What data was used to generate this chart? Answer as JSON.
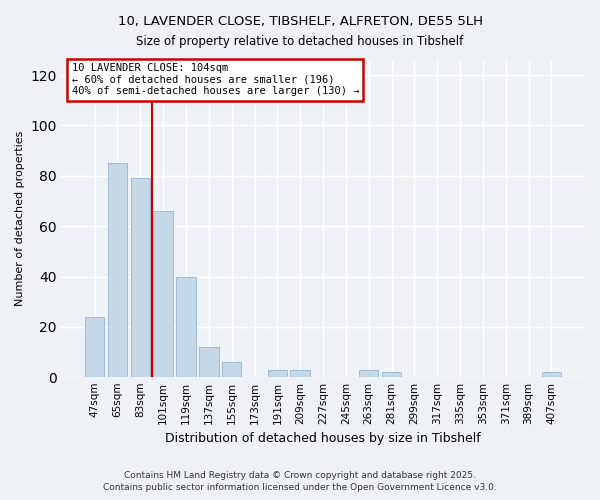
{
  "title_line1": "10, LAVENDER CLOSE, TIBSHELF, ALFRETON, DE55 5LH",
  "title_line2": "Size of property relative to detached houses in Tibshelf",
  "xlabel": "Distribution of detached houses by size in Tibshelf",
  "ylabel": "Number of detached properties",
  "categories": [
    "47sqm",
    "65sqm",
    "83sqm",
    "101sqm",
    "119sqm",
    "137sqm",
    "155sqm",
    "173sqm",
    "191sqm",
    "209sqm",
    "227sqm",
    "245sqm",
    "263sqm",
    "281sqm",
    "299sqm",
    "317sqm",
    "335sqm",
    "353sqm",
    "371sqm",
    "389sqm",
    "407sqm"
  ],
  "values": [
    24,
    85,
    79,
    66,
    40,
    12,
    6,
    0,
    3,
    3,
    0,
    0,
    3,
    2,
    0,
    0,
    0,
    0,
    0,
    0,
    2
  ],
  "bar_color": "#c5d8e8",
  "bar_edge_color": "#a0bcd4",
  "vline_color": "#cc0000",
  "annotation_line1": "10 LAVENDER CLOSE: 104sqm",
  "annotation_line2": "← 60% of detached houses are smaller (196)",
  "annotation_line3": "40% of semi-detached houses are larger (130) →",
  "annotation_box_color": "#cc0000",
  "ylim": [
    0,
    126
  ],
  "yticks": [
    0,
    20,
    40,
    60,
    80,
    100,
    120
  ],
  "background_color": "#eef2f7",
  "grid_color": "#ffffff",
  "footer_line1": "Contains HM Land Registry data © Crown copyright and database right 2025.",
  "footer_line2": "Contains public sector information licensed under the Open Government Licence v3.0."
}
